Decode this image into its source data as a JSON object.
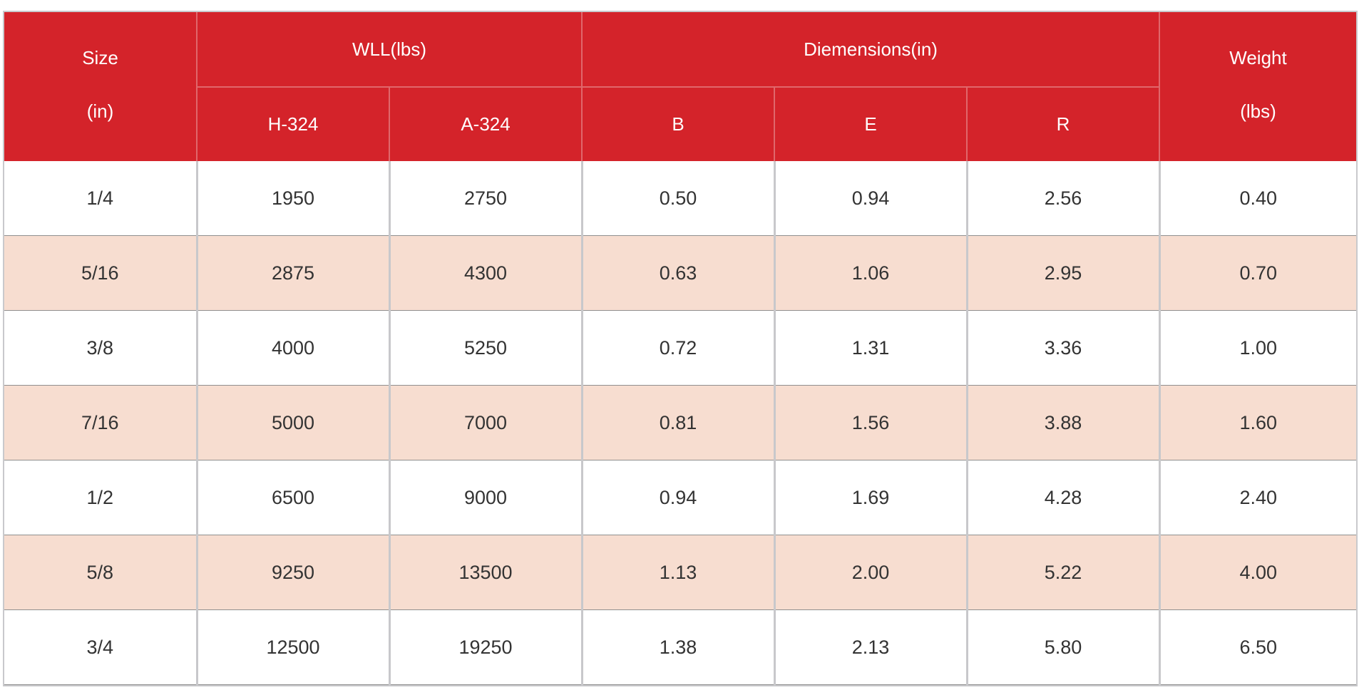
{
  "table": {
    "header": {
      "size_line1": "Size",
      "size_line2": "(in)",
      "wll": "WLL(lbs)",
      "dimensions": "Diemensions(in)",
      "weight_line1": "Weight",
      "weight_line2": "(lbs)",
      "h324": "H-324",
      "a324": "A-324",
      "b": "B",
      "e": "E",
      "r": "R"
    },
    "rows": [
      [
        "1/4",
        "1950",
        "2750",
        "0.50",
        "0.94",
        "2.56",
        "0.40"
      ],
      [
        "5/16",
        "2875",
        "4300",
        "0.63",
        "1.06",
        "2.95",
        "0.70"
      ],
      [
        "3/8",
        "4000",
        "5250",
        "0.72",
        "1.31",
        "3.36",
        "1.00"
      ],
      [
        "7/16",
        "5000",
        "7000",
        "0.81",
        "1.56",
        "3.88",
        "1.60"
      ],
      [
        "1/2",
        "6500",
        "9000",
        "0.94",
        "1.69",
        "4.28",
        "2.40"
      ],
      [
        "5/8",
        "9250",
        "13500",
        "1.13",
        "2.00",
        "5.22",
        "4.00"
      ],
      [
        "3/4",
        "12500",
        "19250",
        "1.38",
        "2.13",
        "5.80",
        "6.50"
      ]
    ]
  },
  "colors": {
    "header_red": "#d4232a",
    "band_peach": "#f7ddd0",
    "row_white": "#ffffff"
  }
}
